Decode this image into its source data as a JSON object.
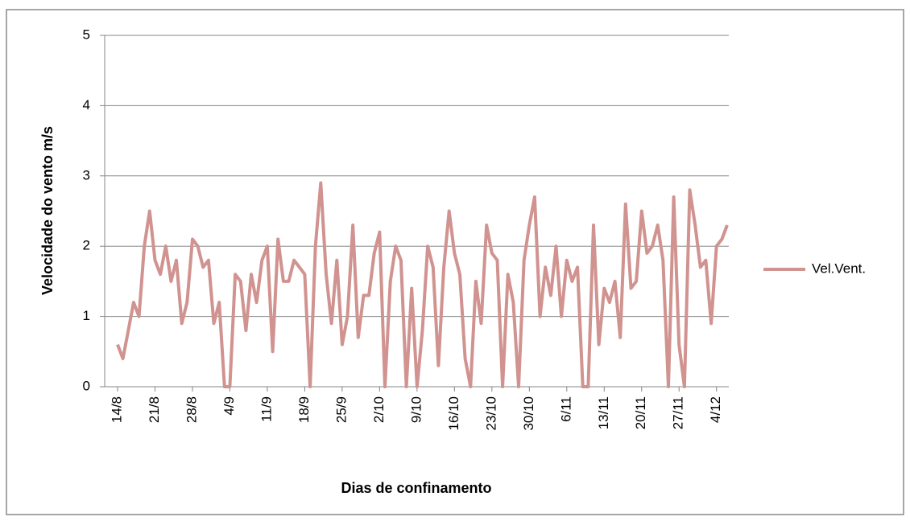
{
  "chart_data": {
    "type": "line",
    "y_label": "Velocidade do vento m/s",
    "x_label": "Dias de confinamento",
    "categories": [
      "14/8",
      null,
      null,
      null,
      null,
      null,
      null,
      "21/8",
      null,
      null,
      null,
      null,
      null,
      null,
      "28/8",
      null,
      null,
      null,
      null,
      null,
      null,
      "4/9",
      null,
      null,
      null,
      null,
      null,
      null,
      "11/9",
      null,
      null,
      null,
      null,
      null,
      null,
      "18/9",
      null,
      null,
      null,
      null,
      null,
      null,
      "25/9",
      null,
      null,
      null,
      null,
      null,
      null,
      "2/10",
      null,
      null,
      null,
      null,
      null,
      null,
      "9/10",
      null,
      null,
      null,
      null,
      null,
      null,
      "16/10",
      null,
      null,
      null,
      null,
      null,
      null,
      "23/10",
      null,
      null,
      null,
      null,
      null,
      null,
      "30/10",
      null,
      null,
      null,
      null,
      null,
      null,
      "6/11",
      null,
      null,
      null,
      null,
      null,
      null,
      "13/11",
      null,
      null,
      null,
      null,
      null,
      null,
      "20/11",
      null,
      null,
      null,
      null,
      null,
      null,
      "27/11",
      null,
      null,
      null,
      null,
      null,
      null,
      "4/12",
      null,
      null
    ],
    "series": [
      {
        "name": "Vel.Vent.",
        "color": "#d09390",
        "values": [
          0.6,
          0.4,
          0.8,
          1.2,
          1.0,
          2.0,
          2.5,
          1.8,
          1.6,
          2.0,
          1.5,
          1.8,
          0.9,
          1.2,
          2.1,
          2.0,
          1.7,
          1.8,
          0.9,
          1.2,
          0,
          0,
          1.6,
          1.5,
          0.8,
          1.6,
          1.2,
          1.8,
          2.0,
          0.5,
          2.1,
          1.5,
          1.5,
          1.8,
          1.7,
          1.6,
          0,
          2.0,
          2.9,
          1.6,
          0.9,
          1.8,
          0.6,
          1.0,
          2.3,
          0.7,
          1.3,
          1.3,
          1.9,
          2.2,
          0,
          1.5,
          2.0,
          1.8,
          0,
          1.4,
          0,
          0.8,
          2.0,
          1.7,
          0.3,
          1.7,
          2.5,
          1.9,
          1.6,
          0.4,
          0,
          1.5,
          0.9,
          2.3,
          1.9,
          1.8,
          0,
          1.6,
          1.2,
          0,
          1.8,
          2.3,
          2.7,
          1.0,
          1.7,
          1.3,
          2.0,
          1.0,
          1.8,
          1.5,
          1.7,
          0,
          0,
          2.3,
          0.6,
          1.4,
          1.2,
          1.5,
          0.7,
          2.6,
          1.4,
          1.5,
          2.5,
          1.9,
          2.0,
          2.3,
          1.8,
          0,
          2.7,
          0.6,
          0,
          2.8,
          2.3,
          1.7,
          1.8,
          0.9,
          2.0,
          2.1,
          2.3
        ]
      }
    ],
    "ylim": [
      0,
      5
    ],
    "yticks": [
      0,
      1,
      2,
      3,
      4,
      5
    ],
    "grid": true,
    "legend": "right"
  }
}
